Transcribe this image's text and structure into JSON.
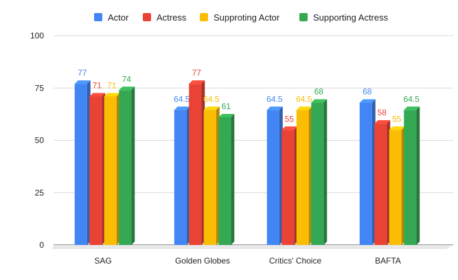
{
  "chart_data": {
    "type": "bar",
    "title": "",
    "xlabel": "",
    "ylabel": "",
    "categories": [
      "SAG",
      "Golden Globes",
      "Critics' Choice",
      "BAFTA"
    ],
    "series": [
      {
        "name": "Actor",
        "color": "#4285F4",
        "values": [
          77,
          64.5,
          64.5,
          68
        ]
      },
      {
        "name": "Actress",
        "color": "#EA4335",
        "values": [
          71,
          77,
          55,
          58
        ]
      },
      {
        "name": "Supproting Actor",
        "color": "#FBBC04",
        "values": [
          71,
          64.5,
          64.5,
          55
        ]
      },
      {
        "name": "Supporting Actress",
        "color": "#34A853",
        "values": [
          74,
          61,
          68,
          64.5
        ]
      }
    ],
    "ylim": [
      0,
      100
    ],
    "yticks": [
      0,
      25,
      50,
      75,
      100
    ],
    "grid": true,
    "legend_position": "top",
    "bar_style": "3d"
  }
}
